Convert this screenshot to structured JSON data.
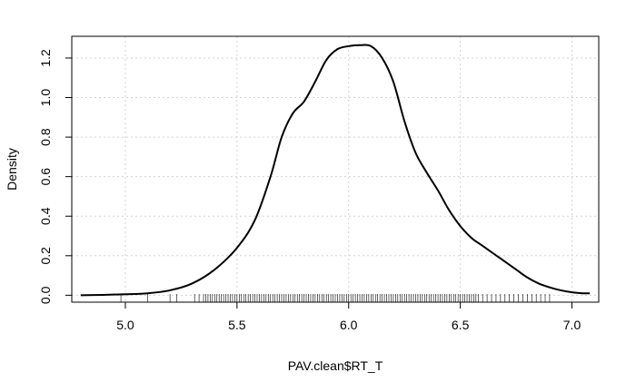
{
  "chart_data": {
    "type": "line",
    "title": "",
    "xlabel": "PAV.clean$RT_T",
    "ylabel": "Density",
    "xlim": [
      4.76,
      7.12
    ],
    "ylim": [
      -0.035,
      1.31
    ],
    "x_ticks": [
      "5.0",
      "5.5",
      "6.0",
      "6.5",
      "7.0"
    ],
    "y_ticks": [
      "0.0",
      "0.2",
      "0.4",
      "0.6",
      "0.8",
      "1.0",
      "1.2"
    ],
    "grid": true,
    "legend": "none",
    "line_color": "#000000",
    "grid_color": "#d3d3d3",
    "series": [
      {
        "x": [
          4.8,
          4.9,
          5.0,
          5.1,
          5.2,
          5.3,
          5.4,
          5.5,
          5.58,
          5.65,
          5.7,
          5.75,
          5.8,
          5.85,
          5.9,
          5.95,
          6.0,
          6.05,
          6.1,
          6.15,
          6.2,
          6.25,
          6.3,
          6.35,
          6.4,
          6.45,
          6.5,
          6.55,
          6.6,
          6.65,
          6.7,
          6.75,
          6.8,
          6.85,
          6.9,
          6.95,
          7.0,
          7.05,
          7.08
        ],
        "y": [
          0.0,
          0.002,
          0.005,
          0.01,
          0.025,
          0.06,
          0.13,
          0.24,
          0.38,
          0.6,
          0.8,
          0.92,
          0.98,
          1.08,
          1.19,
          1.245,
          1.26,
          1.265,
          1.26,
          1.2,
          1.08,
          0.88,
          0.72,
          0.62,
          0.53,
          0.43,
          0.35,
          0.29,
          0.25,
          0.21,
          0.17,
          0.13,
          0.09,
          0.06,
          0.04,
          0.025,
          0.015,
          0.01,
          0.01
        ]
      }
    ],
    "rug": [
      4.98,
      5.1,
      5.2,
      5.23,
      5.31,
      5.33,
      5.35,
      5.36,
      5.37,
      5.38,
      5.39,
      5.4,
      5.41,
      5.42,
      5.43,
      5.44,
      5.45,
      5.46,
      5.47,
      5.48,
      5.49,
      5.5,
      5.51,
      5.52,
      5.53,
      5.54,
      5.55,
      5.56,
      5.57,
      5.58,
      5.59,
      5.6,
      5.61,
      5.62,
      5.63,
      5.64,
      5.65,
      5.66,
      5.67,
      5.68,
      5.69,
      5.7,
      5.71,
      5.72,
      5.73,
      5.74,
      5.75,
      5.76,
      5.77,
      5.78,
      5.79,
      5.8,
      5.81,
      5.82,
      5.83,
      5.84,
      5.85,
      5.86,
      5.87,
      5.88,
      5.89,
      5.9,
      5.91,
      5.92,
      5.93,
      5.94,
      5.95,
      5.96,
      5.97,
      5.98,
      5.99,
      6.0,
      6.01,
      6.02,
      6.03,
      6.04,
      6.05,
      6.06,
      6.07,
      6.08,
      6.09,
      6.1,
      6.11,
      6.12,
      6.13,
      6.14,
      6.15,
      6.16,
      6.17,
      6.18,
      6.19,
      6.2,
      6.21,
      6.22,
      6.23,
      6.24,
      6.25,
      6.26,
      6.27,
      6.28,
      6.29,
      6.3,
      6.31,
      6.32,
      6.33,
      6.34,
      6.35,
      6.36,
      6.37,
      6.38,
      6.39,
      6.4,
      6.41,
      6.42,
      6.43,
      6.44,
      6.45,
      6.46,
      6.47,
      6.48,
      6.49,
      6.5,
      6.51,
      6.52,
      6.53,
      6.54,
      6.55,
      6.56,
      6.57,
      6.58,
      6.6,
      6.62,
      6.64,
      6.66,
      6.68,
      6.7,
      6.72,
      6.74,
      6.76,
      6.78,
      6.8,
      6.82,
      6.84,
      6.86,
      6.88,
      6.9
    ]
  }
}
